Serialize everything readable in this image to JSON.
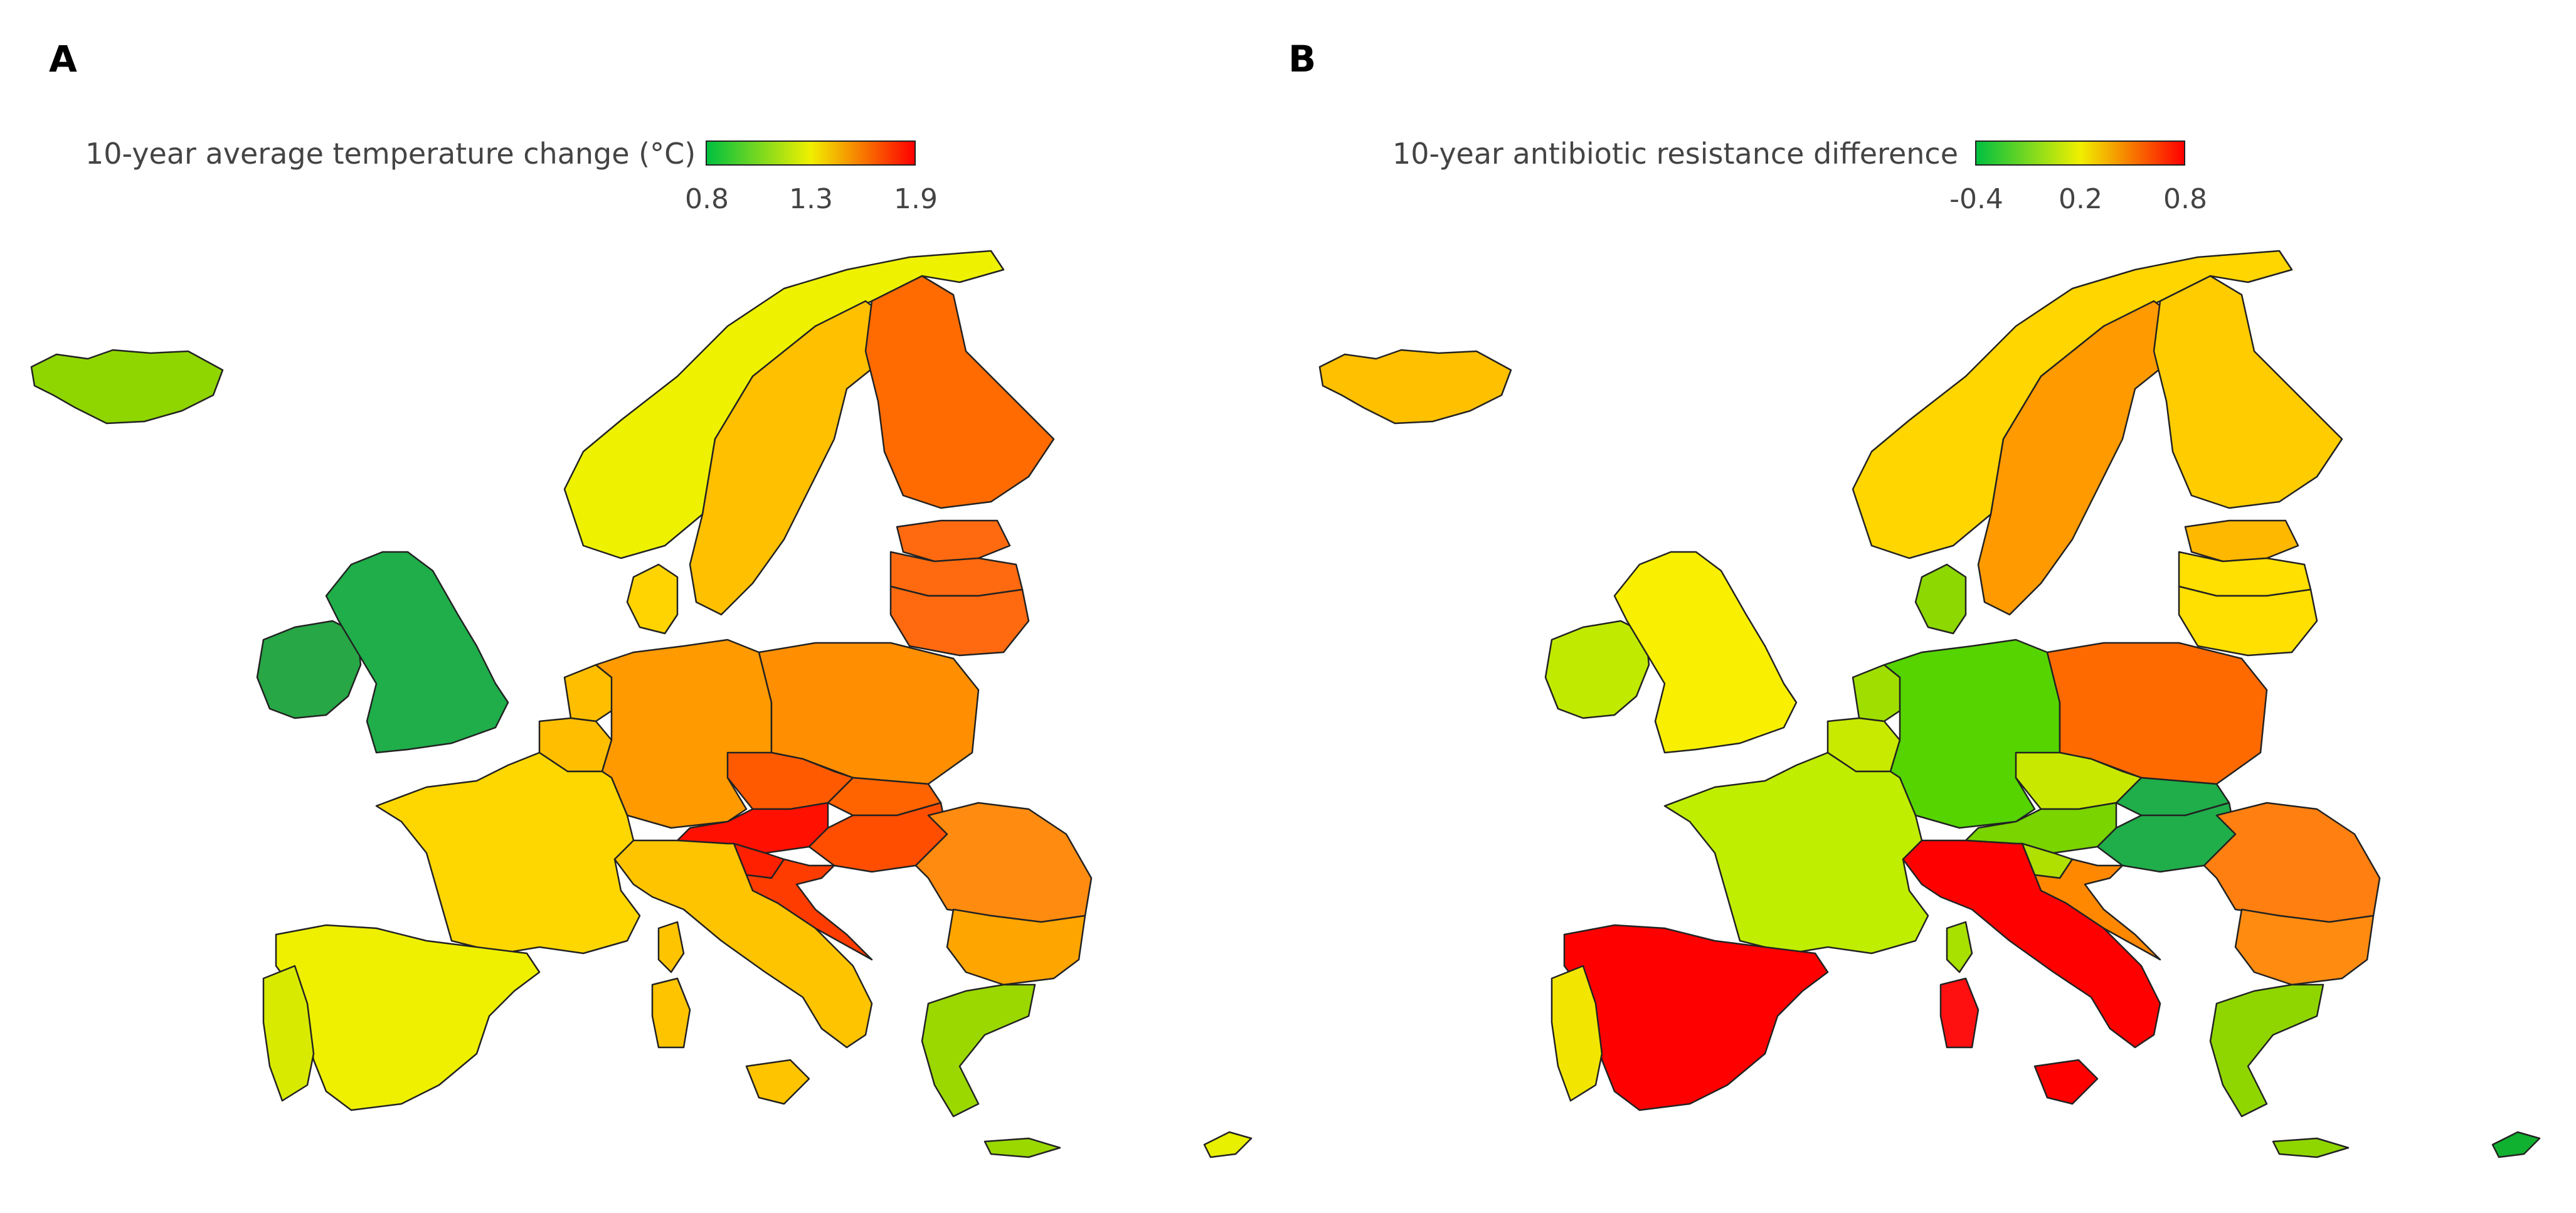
{
  "panels": [
    {
      "label": "A",
      "legend": {
        "title": "10-year average temperature change (°C)",
        "ticks": [
          "0.8",
          "1.3",
          "1.9"
        ]
      },
      "countries": {
        "iceland": "#8fd600",
        "ireland": "#27a745",
        "uk": "#1fae4a",
        "norway": "#eef200",
        "sweden": "#ffc000",
        "finland": "#ff6b00",
        "estonia": "#ff6a10",
        "latvia": "#ff6a10",
        "lithuania": "#ff6a10",
        "denmark": "#ffd400",
        "netherlands": "#ffbf00",
        "belgium": "#ffbf00",
        "germany": "#ff9a00",
        "poland": "#ff8f00",
        "czechia": "#ff5a00",
        "slovakia": "#ff6400",
        "austria": "#ff1000",
        "hungary": "#ff4e00",
        "slovenia": "#ff2000",
        "croatia": "#ff3c00",
        "france": "#ffd700",
        "italy": "#ffc400",
        "spain": "#eef000",
        "portugal": "#d8ea00",
        "romania": "#ff8c10",
        "bulgaria": "#ffa500",
        "greece": "#9ad800",
        "cyprus": "#e8f000",
        "sardinia": "#ffc400",
        "corsica": "#ffc400"
      }
    },
    {
      "label": "B",
      "legend": {
        "title": "10-year antibiotic resistance difference",
        "ticks": [
          "-0.4",
          "0.2",
          "0.8"
        ]
      },
      "countries": {
        "iceland": "#ffc000",
        "ireland": "#c0ea00",
        "uk": "#f8f000",
        "norway": "#ffd600",
        "sweden": "#ff9a00",
        "finland": "#ffcc00",
        "estonia": "#ffb800",
        "latvia": "#ffe000",
        "lithuania": "#ffe000",
        "denmark": "#8cd800",
        "netherlands": "#a0de00",
        "belgium": "#c8ea00",
        "germany": "#55d400",
        "poland": "#ff6a00",
        "czechia": "#c8e800",
        "slovakia": "#1fae4a",
        "austria": "#7ad400",
        "hungary": "#1fae4a",
        "slovenia": "#b0e000",
        "croatia": "#ff8800",
        "france": "#bfee00",
        "italy": "#ff0000",
        "spain": "#ff0000",
        "portugal": "#f2e600",
        "romania": "#ff8010",
        "bulgaria": "#ff8c10",
        "greece": "#8fd600",
        "cyprus": "#10b030",
        "sardinia": "#ff1010",
        "corsica": "#a8e000"
      }
    }
  ],
  "legend_colors": {
    "low": "#00c040",
    "mid": "#f0f000",
    "high": "#ff0000"
  }
}
